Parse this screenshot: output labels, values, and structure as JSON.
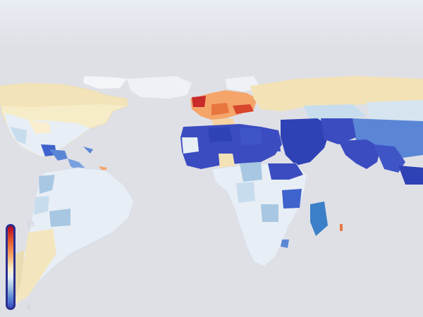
{
  "map": {
    "type": "3d-choropleth-world",
    "colors": {
      "background": "#dfe0e6",
      "sky": "#e9ecf4",
      "scale_high": "#b40426",
      "scale_mid": "#fbedc4",
      "scale_low": "#3b4cc0"
    },
    "legend": {
      "max_label": "15",
      "min_label": "0",
      "colormap": "coolwarm"
    }
  }
}
